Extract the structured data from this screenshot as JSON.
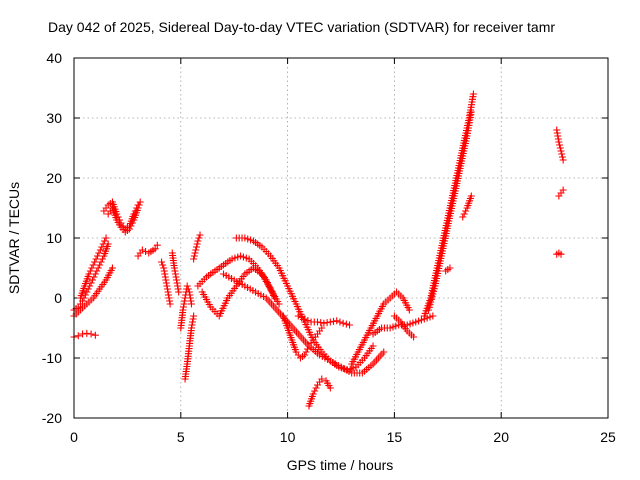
{
  "chart_data": {
    "type": "scatter",
    "title": "Day 042 of 2025, Sidereal Day-to-day VTEC variation (SDTVAR) for receiver tamr",
    "xlabel": "GPS time / hours",
    "ylabel": "SDTVAR / TECUs",
    "xlim": [
      0,
      25
    ],
    "ylim": [
      -20,
      40
    ],
    "xticks": [
      0,
      5,
      10,
      15,
      20,
      25
    ],
    "yticks": [
      -20,
      -10,
      0,
      10,
      20,
      30,
      40
    ],
    "xtick_labels": [
      "0",
      "5",
      "10",
      "15",
      "20",
      "25"
    ],
    "ytick_labels": [
      "-20",
      "-10",
      "0",
      "10",
      "20",
      "30",
      "40"
    ],
    "grid": true,
    "marker": "+",
    "color": "#ff0000",
    "series": [
      {
        "x": [
          0.0,
          0.2,
          0.4,
          0.6,
          0.8,
          1.0,
          1.2,
          1.4,
          1.6
        ],
        "y": [
          -2,
          -1.5,
          -0.5,
          1,
          2.5,
          4,
          5.5,
          7,
          9
        ]
      },
      {
        "x": [
          0.0,
          0.3,
          0.6,
          0.9,
          1.2,
          1.5,
          1.8
        ],
        "y": [
          -3,
          -2,
          -1,
          0,
          1.5,
          3,
          5
        ]
      },
      {
        "x": [
          0.0,
          0.2,
          0.4,
          0.6,
          0.8,
          1.0
        ],
        "y": [
          -6.5,
          -6.3,
          -6.0,
          -5.9,
          -6.0,
          -6.2
        ]
      },
      {
        "x": [
          0.3,
          0.5,
          0.7,
          0.9,
          1.1,
          1.3,
          1.5
        ],
        "y": [
          0,
          2,
          4,
          5.5,
          7,
          8.5,
          10
        ]
      },
      {
        "x": [
          1.4,
          1.6,
          1.8,
          2.0,
          2.2,
          2.4,
          2.6,
          2.8,
          3.0
        ],
        "y": [
          14.5,
          15.5,
          16.0,
          14.0,
          12.5,
          11.5,
          12.0,
          14.0,
          15.5
        ]
      },
      {
        "x": [
          1.6,
          1.8,
          2.0,
          2.2,
          2.4,
          2.6,
          2.8,
          3.0,
          3.1
        ],
        "y": [
          14,
          15,
          13,
          11.8,
          11,
          11.5,
          13,
          15,
          16
        ]
      },
      {
        "x": [
          3.0,
          3.2,
          3.5,
          3.8,
          3.9
        ],
        "y": [
          7,
          8,
          7.5,
          8.2,
          8.8
        ]
      },
      {
        "x": [
          4.1,
          4.2,
          4.3,
          4.4,
          4.5
        ],
        "y": [
          6,
          5,
          3,
          1,
          -1
        ]
      },
      {
        "x": [
          4.6,
          4.7,
          4.8,
          4.9
        ],
        "y": [
          7.5,
          5,
          3,
          1
        ]
      },
      {
        "x": [
          5.0,
          5.1,
          5.2,
          5.3,
          5.4,
          5.5
        ],
        "y": [
          -5,
          -2,
          0,
          2,
          1,
          -1
        ]
      },
      {
        "x": [
          5.2,
          5.3,
          5.4,
          5.5,
          5.6
        ],
        "y": [
          -13.5,
          -11,
          -8,
          -5,
          -3
        ]
      },
      {
        "x": [
          5.6,
          5.7,
          5.8,
          5.9
        ],
        "y": [
          6.5,
          8,
          9.5,
          10.5
        ]
      },
      {
        "x": [
          5.8,
          6.2,
          6.6,
          7.0,
          7.4,
          7.8,
          8.2,
          8.6,
          9.0,
          9.4
        ],
        "y": [
          2,
          3.5,
          4.5,
          5.5,
          6.5,
          7,
          6.5,
          5,
          3,
          0
        ]
      },
      {
        "x": [
          6.0,
          6.4,
          6.8,
          7.2,
          7.6,
          8.0,
          8.4,
          8.8,
          9.2,
          9.6
        ],
        "y": [
          1,
          -1.5,
          -3,
          0,
          2,
          4,
          5,
          4,
          1.5,
          -1
        ]
      },
      {
        "x": [
          7.6,
          8.0,
          8.4,
          8.8,
          9.2,
          9.6,
          10.0,
          10.4,
          10.8,
          11.2,
          11.6,
          12.0,
          12.4,
          12.8,
          13.2,
          13.6,
          14.0
        ],
        "y": [
          10,
          10,
          9.5,
          8.5,
          7,
          5,
          2,
          -1,
          -4,
          -7,
          -9,
          -10.5,
          -11.5,
          -12,
          -11.5,
          -10,
          -8
        ]
      },
      {
        "x": [
          7.0,
          7.5,
          8.0,
          8.5,
          9.0,
          9.5,
          10.0,
          10.5,
          11.0,
          11.5,
          12.0,
          12.5,
          13.0,
          13.5,
          14.0,
          14.5
        ],
        "y": [
          4,
          3,
          2,
          1,
          0,
          -2,
          -4,
          -6,
          -8,
          -9.5,
          -10.5,
          -11.5,
          -12.5,
          -12.5,
          -11,
          -9
        ]
      },
      {
        "x": [
          9.8,
          10.0,
          10.2,
          10.4,
          10.6,
          10.8,
          11.0,
          11.2,
          11.4,
          11.6
        ],
        "y": [
          -3,
          -5,
          -7,
          -9,
          -10,
          -9.5,
          -8,
          -7,
          -6,
          -5
        ]
      },
      {
        "x": [
          10.5,
          10.8,
          11.1,
          11.4,
          11.7,
          12.0,
          12.3,
          12.6,
          12.9
        ],
        "y": [
          -3,
          -3.5,
          -4,
          -4,
          -4.2,
          -4,
          -3.8,
          -4.2,
          -4.5
        ]
      },
      {
        "x": [
          11.0,
          11.2,
          11.4,
          11.6,
          11.8,
          12.0
        ],
        "y": [
          -18,
          -16,
          -14.5,
          -13.5,
          -13.8,
          -15
        ]
      },
      {
        "x": [
          13.0,
          13.3,
          13.6,
          13.9,
          14.2,
          14.5,
          14.8,
          15.1,
          15.4,
          15.7
        ],
        "y": [
          -11,
          -9,
          -7,
          -5,
          -3,
          -1,
          0,
          1,
          0,
          -2
        ]
      },
      {
        "x": [
          14.0,
          14.4,
          14.8,
          15.2,
          15.6,
          16.0,
          16.4,
          16.8
        ],
        "y": [
          -6,
          -5,
          -5,
          -4.5,
          -4.5,
          -4,
          -3.5,
          -3
        ]
      },
      {
        "x": [
          15.0,
          15.3,
          15.6,
          15.9
        ],
        "y": [
          -3,
          -4,
          -5.5,
          -6.5
        ]
      },
      {
        "x": [
          16.4,
          16.7,
          17.0,
          17.3,
          17.6,
          17.9,
          18.2,
          18.5,
          18.7
        ],
        "y": [
          -3,
          0,
          5,
          10,
          15,
          20,
          25,
          30,
          34
        ]
      },
      {
        "x": [
          16.6,
          16.9,
          17.2,
          17.5,
          17.8,
          18.1,
          18.4,
          18.6
        ],
        "y": [
          -2,
          2,
          7,
          12,
          17,
          22,
          27,
          31
        ]
      },
      {
        "x": [
          17.4,
          17.6
        ],
        "y": [
          4.5,
          5
        ]
      },
      {
        "x": [
          18.2,
          18.4,
          18.6
        ],
        "y": [
          13.5,
          15,
          17
        ]
      },
      {
        "x": [
          22.6,
          22.7,
          22.8,
          22.9
        ],
        "y": [
          28,
          26,
          24.5,
          23
        ]
      },
      {
        "x": [
          22.7,
          22.8,
          22.9
        ],
        "y": [
          17,
          17.5,
          18
        ]
      },
      {
        "x": [
          22.6,
          22.7,
          22.8
        ],
        "y": [
          7.3,
          7.5,
          7.3
        ]
      }
    ]
  }
}
